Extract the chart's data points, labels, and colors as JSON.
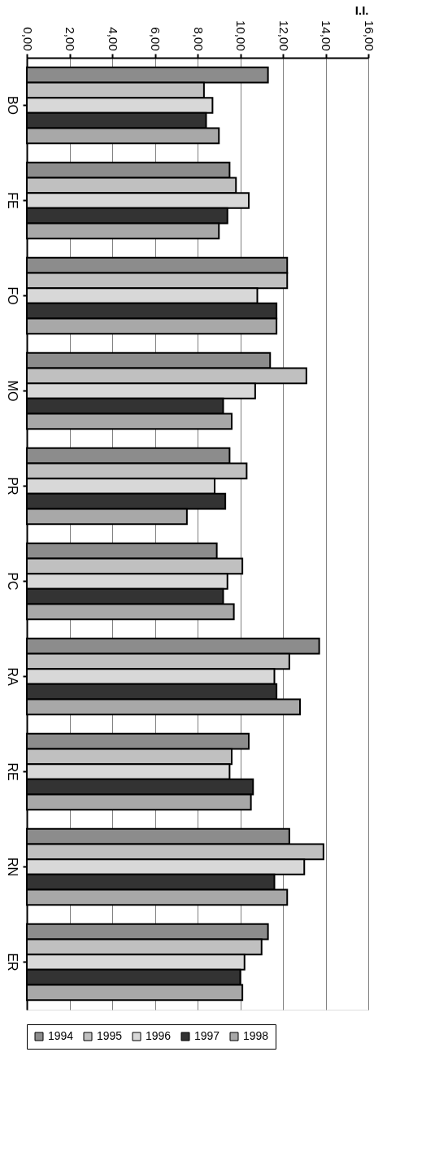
{
  "chart_data": {
    "type": "bar",
    "orientation": "horizontal",
    "xlabel": "I.I.",
    "categories": [
      "BO",
      "FE",
      "FO",
      "MO",
      "PR",
      "PC",
      "RA",
      "RE",
      "RN",
      "ER"
    ],
    "series": [
      {
        "name": "1994",
        "color": "#8c8c8c",
        "values": [
          11.3,
          9.5,
          12.2,
          11.4,
          9.5,
          8.9,
          13.7,
          10.4,
          12.3,
          11.3
        ]
      },
      {
        "name": "1995",
        "color": "#c0c0c0",
        "values": [
          8.3,
          9.8,
          12.2,
          13.1,
          10.3,
          10.1,
          12.3,
          9.6,
          13.9,
          11.0
        ]
      },
      {
        "name": "1996",
        "color": "#d8d8d8",
        "values": [
          8.7,
          10.4,
          10.8,
          10.7,
          8.8,
          9.4,
          11.6,
          9.5,
          13.0,
          10.2
        ]
      },
      {
        "name": "1997",
        "color": "#333333",
        "values": [
          8.4,
          9.4,
          11.7,
          9.2,
          9.3,
          9.2,
          11.7,
          10.6,
          11.6,
          10.0
        ]
      },
      {
        "name": "1998",
        "color": "#a8a8a8",
        "values": [
          9.0,
          9.0,
          11.7,
          9.6,
          7.5,
          9.7,
          12.8,
          10.5,
          12.2,
          10.1
        ]
      }
    ],
    "xlim": [
      0,
      16
    ],
    "xticks": [
      {
        "value": 0,
        "label": "0,00"
      },
      {
        "value": 2,
        "label": "2,00"
      },
      {
        "value": 4,
        "label": "4,00"
      },
      {
        "value": 6,
        "label": "6,00"
      },
      {
        "value": 8,
        "label": "8,00"
      },
      {
        "value": 10,
        "label": "10,00"
      },
      {
        "value": 12,
        "label": "12,00"
      },
      {
        "value": 14,
        "label": "14,00"
      },
      {
        "value": 16,
        "label": "16,00"
      }
    ],
    "grid": "x",
    "legend": "bottom"
  }
}
